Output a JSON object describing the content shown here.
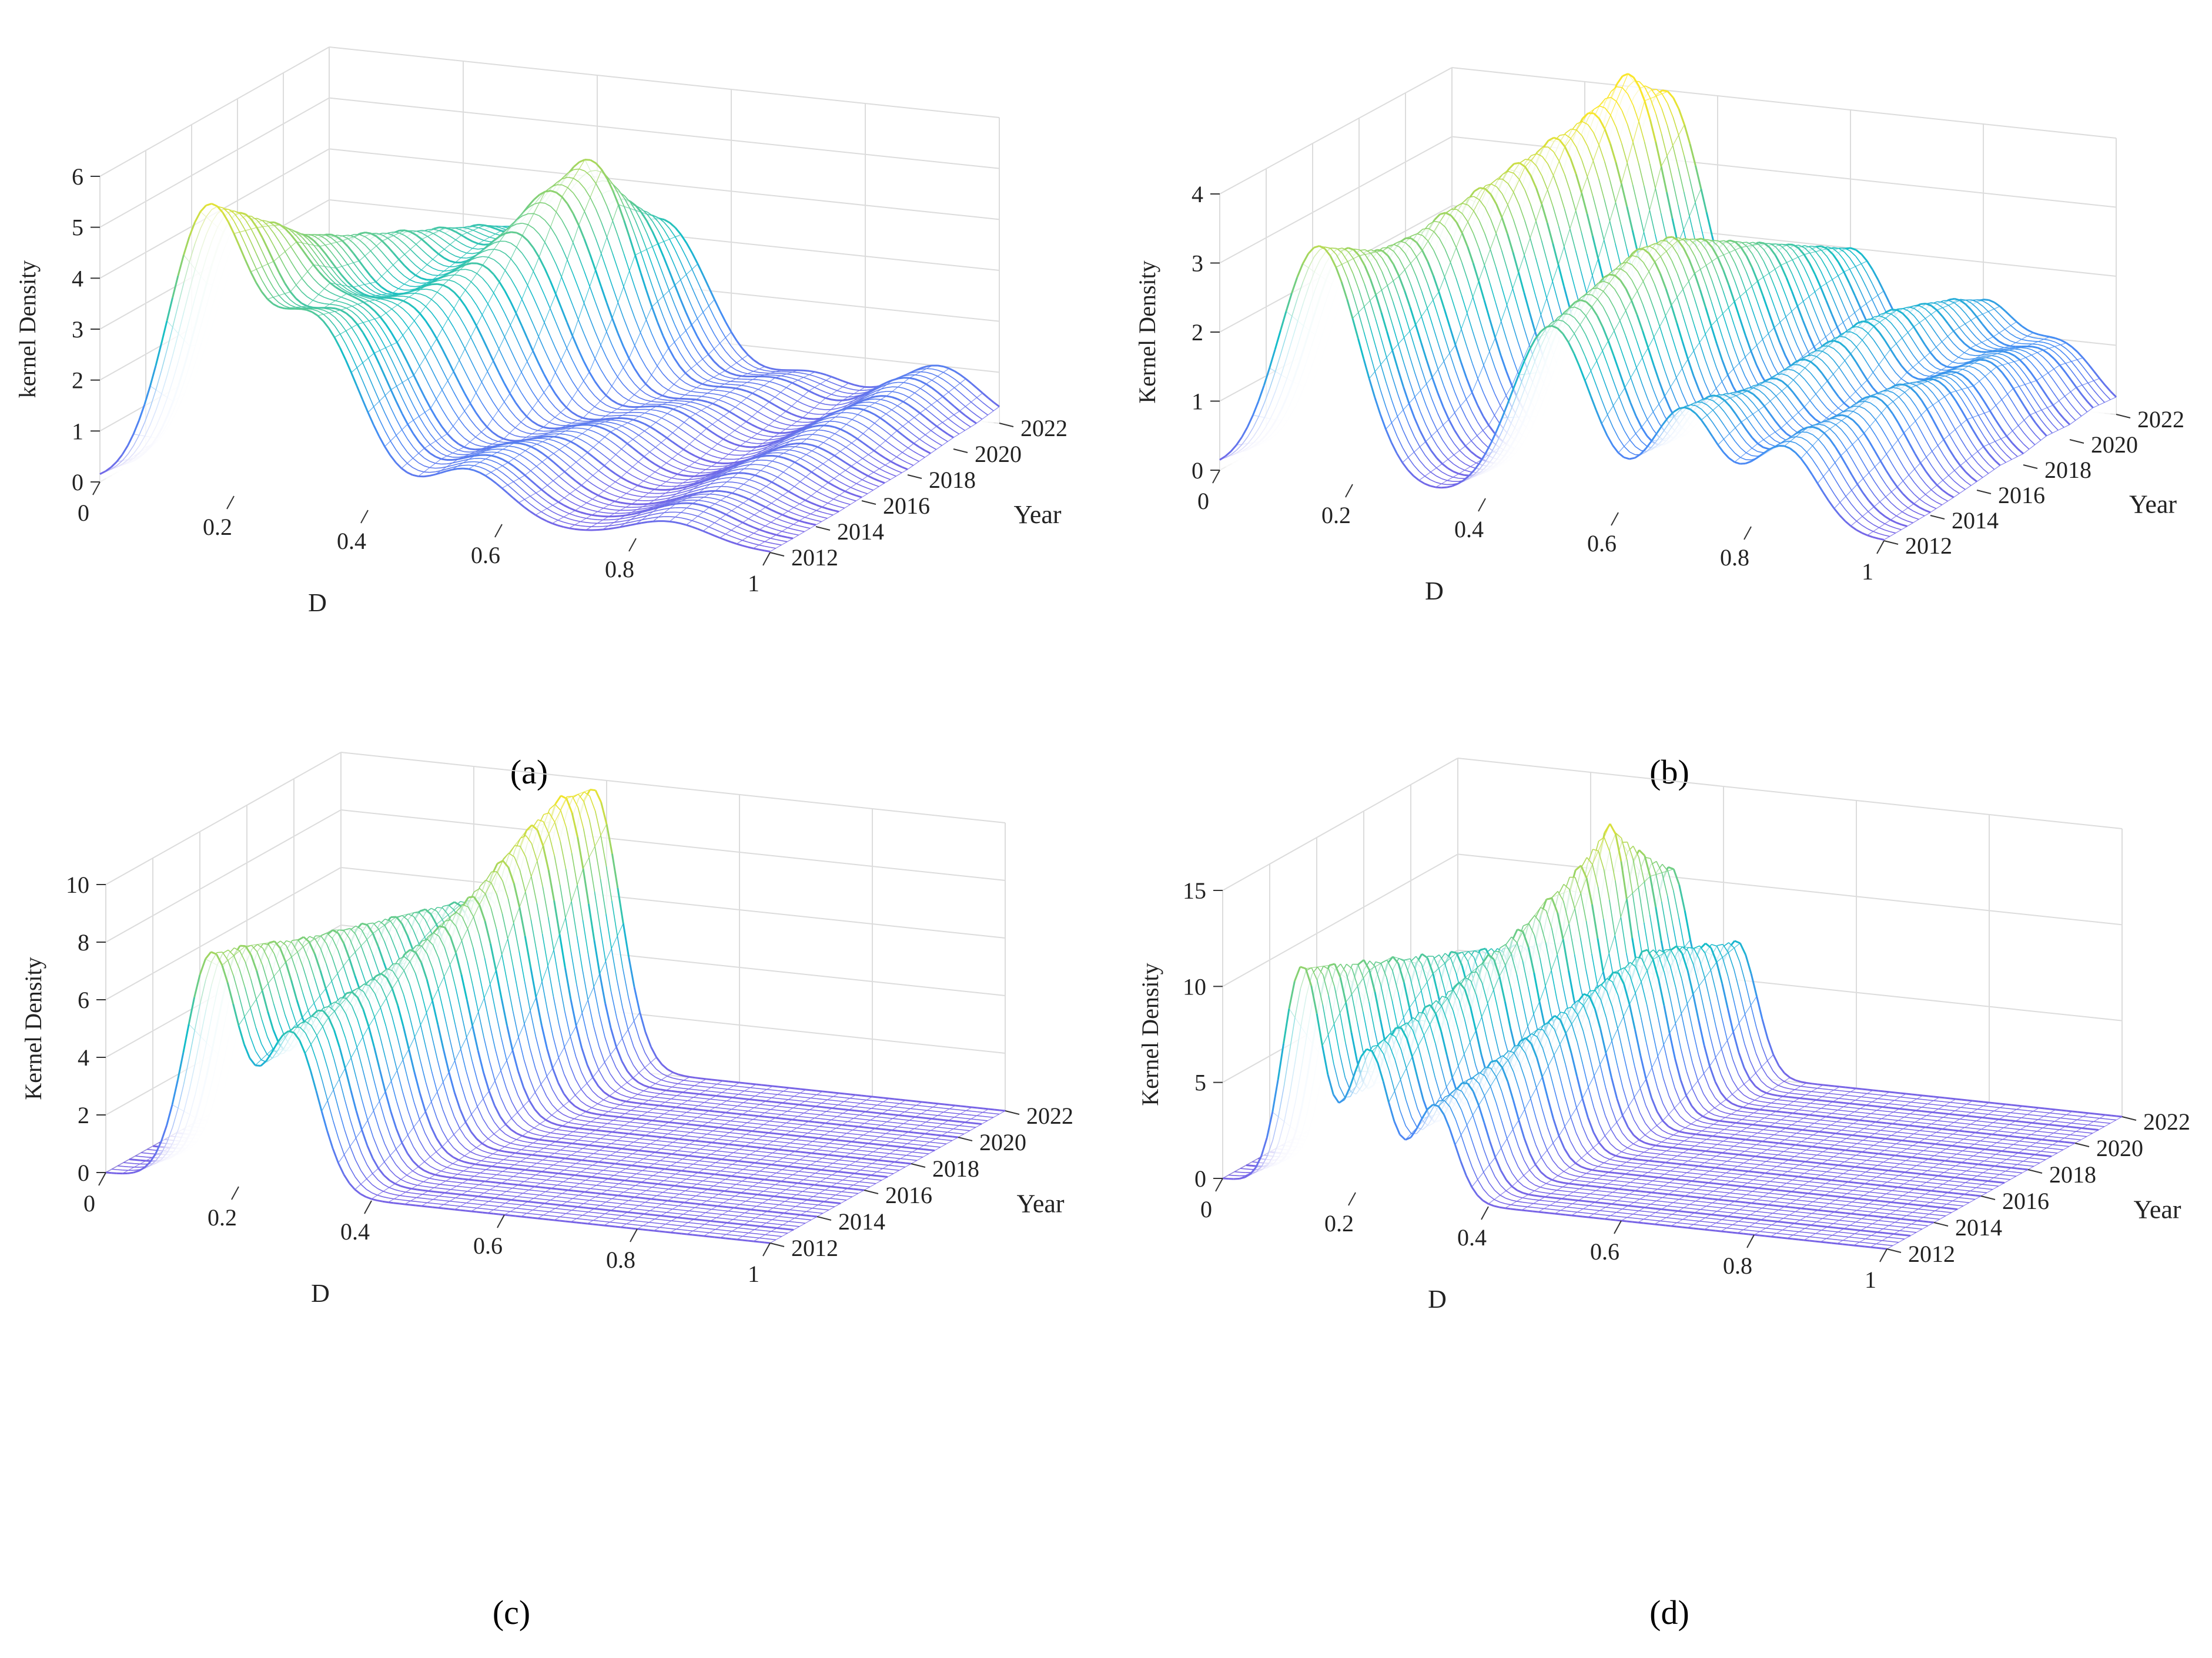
{
  "figure": {
    "captions": [
      "(a)",
      "(b)",
      "(c)",
      "(d)"
    ]
  },
  "chart_data": [
    {
      "id": "a",
      "type": "surface3d",
      "caption_letter": "a",
      "xlabel": "D",
      "ylabel": "Year",
      "zlabel": "kernel Density",
      "x_ticks": [
        "0",
        "0.2",
        "0.4",
        "0.6",
        "0.8",
        "1"
      ],
      "year_ticks": [
        "2012",
        "2014",
        "2016",
        "2018",
        "2020",
        "2022"
      ],
      "z_ticks": [
        "0",
        "1",
        "2",
        "3",
        "4",
        "5",
        "6"
      ],
      "xlim": [
        0,
        1
      ],
      "ylim": [
        2012,
        2022
      ],
      "zlim": [
        0,
        6
      ],
      "series": [
        {
          "year": 2012,
          "peaks": [
            [
              0.16,
              0.06,
              5.4
            ],
            [
              0.32,
              0.07,
              3.6
            ],
            [
              0.55,
              0.06,
              1.0
            ],
            [
              0.85,
              0.06,
              0.4
            ]
          ]
        },
        {
          "year": 2013,
          "peaks": [
            [
              0.17,
              0.06,
              5.0
            ],
            [
              0.33,
              0.07,
              3.4
            ],
            [
              0.55,
              0.06,
              1.0
            ],
            [
              0.85,
              0.06,
              0.5
            ]
          ]
        },
        {
          "year": 2014,
          "peaks": [
            [
              0.18,
              0.07,
              4.6
            ],
            [
              0.34,
              0.07,
              3.0
            ],
            [
              0.56,
              0.06,
              1.0
            ],
            [
              0.86,
              0.06,
              0.5
            ]
          ]
        },
        {
          "year": 2015,
          "peaks": [
            [
              0.19,
              0.07,
              4.2
            ],
            [
              0.36,
              0.07,
              3.0
            ],
            [
              0.58,
              0.06,
              0.9
            ],
            [
              0.86,
              0.06,
              0.6
            ]
          ]
        },
        {
          "year": 2016,
          "peaks": [
            [
              0.2,
              0.07,
              4.0
            ],
            [
              0.38,
              0.07,
              3.2
            ],
            [
              0.6,
              0.06,
              0.9
            ],
            [
              0.87,
              0.06,
              0.7
            ]
          ]
        },
        {
          "year": 2017,
          "peaks": [
            [
              0.22,
              0.07,
              3.8
            ],
            [
              0.4,
              0.07,
              3.4
            ],
            [
              0.62,
              0.06,
              0.8
            ],
            [
              0.88,
              0.06,
              0.7
            ]
          ]
        },
        {
          "year": 2018,
          "peaks": [
            [
              0.24,
              0.07,
              3.6
            ],
            [
              0.42,
              0.07,
              3.8
            ],
            [
              0.64,
              0.06,
              0.8
            ],
            [
              0.88,
              0.06,
              0.8
            ]
          ]
        },
        {
          "year": 2019,
          "peaks": [
            [
              0.26,
              0.07,
              3.4
            ],
            [
              0.44,
              0.07,
              4.4
            ],
            [
              0.66,
              0.06,
              0.7
            ],
            [
              0.89,
              0.06,
              0.9
            ]
          ]
        },
        {
          "year": 2020,
          "peaks": [
            [
              0.28,
              0.07,
              3.2
            ],
            [
              0.46,
              0.07,
              4.8
            ],
            [
              0.68,
              0.06,
              0.7
            ],
            [
              0.9,
              0.06,
              0.9
            ]
          ]
        },
        {
          "year": 2021,
          "peaks": [
            [
              0.3,
              0.07,
              3.0
            ],
            [
              0.48,
              0.07,
              3.8
            ],
            [
              0.7,
              0.06,
              0.7
            ],
            [
              0.9,
              0.06,
              1.0
            ]
          ]
        },
        {
          "year": 2022,
          "peaks": [
            [
              0.32,
              0.07,
              2.8
            ],
            [
              0.5,
              0.07,
              3.2
            ],
            [
              0.72,
              0.06,
              0.6
            ],
            [
              0.91,
              0.06,
              1.0
            ]
          ]
        }
      ]
    },
    {
      "id": "b",
      "type": "surface3d",
      "caption_letter": "b",
      "xlabel": "D",
      "ylabel": "Year",
      "zlabel": "Kernel Density",
      "x_ticks": [
        "0",
        "0.2",
        "0.4",
        "0.6",
        "0.8",
        "1"
      ],
      "year_ticks": [
        "2012",
        "2014",
        "2016",
        "2018",
        "2020",
        "2022"
      ],
      "z_ticks": [
        "0",
        "1",
        "2",
        "3",
        "4"
      ],
      "xlim": [
        0,
        1
      ],
      "ylim": [
        2012,
        2022
      ],
      "zlim": [
        0,
        4
      ],
      "series": [
        {
          "year": 2012,
          "peaks": [
            [
              0.15,
              0.06,
              3.4
            ],
            [
              0.5,
              0.06,
              2.6
            ],
            [
              0.7,
              0.05,
              1.6
            ],
            [
              0.85,
              0.05,
              1.2
            ]
          ]
        },
        {
          "year": 2013,
          "peaks": [
            [
              0.16,
              0.06,
              3.2
            ],
            [
              0.51,
              0.06,
              2.8
            ],
            [
              0.71,
              0.05,
              1.6
            ],
            [
              0.86,
              0.05,
              1.3
            ]
          ]
        },
        {
          "year": 2014,
          "peaks": [
            [
              0.17,
              0.06,
              3.0
            ],
            [
              0.52,
              0.06,
              3.0
            ],
            [
              0.72,
              0.05,
              1.5
            ],
            [
              0.87,
              0.05,
              1.3
            ]
          ]
        },
        {
          "year": 2015,
          "peaks": [
            [
              0.18,
              0.06,
              3.0
            ],
            [
              0.53,
              0.06,
              3.2
            ],
            [
              0.73,
              0.05,
              1.5
            ],
            [
              0.88,
              0.05,
              1.4
            ]
          ]
        },
        {
          "year": 2016,
          "peaks": [
            [
              0.2,
              0.06,
              3.2
            ],
            [
              0.54,
              0.06,
              3.2
            ],
            [
              0.74,
              0.05,
              1.6
            ],
            [
              0.89,
              0.05,
              1.4
            ]
          ]
        },
        {
          "year": 2017,
          "peaks": [
            [
              0.22,
              0.06,
              3.4
            ],
            [
              0.55,
              0.06,
              3.0
            ],
            [
              0.75,
              0.05,
              1.7
            ],
            [
              0.9,
              0.05,
              1.3
            ]
          ]
        },
        {
          "year": 2018,
          "peaks": [
            [
              0.24,
              0.06,
              3.6
            ],
            [
              0.56,
              0.06,
              2.8
            ],
            [
              0.76,
              0.05,
              1.8
            ],
            [
              0.9,
              0.05,
              1.2
            ]
          ]
        },
        {
          "year": 2019,
          "peaks": [
            [
              0.26,
              0.06,
              3.8
            ],
            [
              0.57,
              0.06,
              2.6
            ],
            [
              0.77,
              0.05,
              1.8
            ],
            [
              0.91,
              0.05,
              1.2
            ]
          ]
        },
        {
          "year": 2020,
          "peaks": [
            [
              0.28,
              0.06,
              4.0
            ],
            [
              0.58,
              0.06,
              2.4
            ],
            [
              0.78,
              0.05,
              1.7
            ],
            [
              0.91,
              0.05,
              1.1
            ]
          ]
        },
        {
          "year": 2021,
          "peaks": [
            [
              0.3,
              0.06,
              4.4
            ],
            [
              0.59,
              0.06,
              2.2
            ],
            [
              0.79,
              0.05,
              1.6
            ],
            [
              0.92,
              0.05,
              1.0
            ]
          ]
        },
        {
          "year": 2022,
          "peaks": [
            [
              0.32,
              0.06,
              4.0
            ],
            [
              0.6,
              0.06,
              2.0
            ],
            [
              0.8,
              0.05,
              1.4
            ],
            [
              0.92,
              0.05,
              0.9
            ]
          ]
        }
      ]
    },
    {
      "id": "c",
      "type": "surface3d",
      "caption_letter": "c",
      "xlabel": "D",
      "ylabel": "Year",
      "zlabel": "Kernel Density",
      "x_ticks": [
        "0",
        "0.2",
        "0.4",
        "0.6",
        "0.8",
        "1"
      ],
      "year_ticks": [
        "2012",
        "2014",
        "2016",
        "2018",
        "2020",
        "2022"
      ],
      "z_ticks": [
        "0",
        "2",
        "4",
        "6",
        "8",
        "10"
      ],
      "xlim": [
        0,
        1
      ],
      "ylim": [
        2012,
        2022
      ],
      "zlim": [
        0,
        10
      ],
      "series": [
        {
          "year": 2012,
          "peaks": [
            [
              0.16,
              0.04,
              8.0
            ],
            [
              0.28,
              0.04,
              5.5
            ]
          ]
        },
        {
          "year": 2013,
          "peaks": [
            [
              0.17,
              0.04,
              7.8
            ],
            [
              0.29,
              0.04,
              5.8
            ]
          ]
        },
        {
          "year": 2014,
          "peaks": [
            [
              0.18,
              0.04,
              7.5
            ],
            [
              0.3,
              0.04,
              6.0
            ]
          ]
        },
        {
          "year": 2015,
          "peaks": [
            [
              0.19,
              0.04,
              7.2
            ],
            [
              0.31,
              0.04,
              6.2
            ]
          ]
        },
        {
          "year": 2016,
          "peaks": [
            [
              0.2,
              0.04,
              7.0
            ],
            [
              0.32,
              0.04,
              6.6
            ]
          ]
        },
        {
          "year": 2017,
          "peaks": [
            [
              0.21,
              0.04,
              6.8
            ],
            [
              0.33,
              0.04,
              7.0
            ]
          ]
        },
        {
          "year": 2018,
          "peaks": [
            [
              0.22,
              0.04,
              6.6
            ],
            [
              0.34,
              0.04,
              7.6
            ]
          ]
        },
        {
          "year": 2019,
          "peaks": [
            [
              0.23,
              0.04,
              6.4
            ],
            [
              0.35,
              0.04,
              8.4
            ]
          ]
        },
        {
          "year": 2020,
          "peaks": [
            [
              0.24,
              0.04,
              6.2
            ],
            [
              0.36,
              0.04,
              9.2
            ]
          ]
        },
        {
          "year": 2021,
          "peaks": [
            [
              0.25,
              0.04,
              6.0
            ],
            [
              0.37,
              0.04,
              9.8
            ]
          ]
        },
        {
          "year": 2022,
          "peaks": [
            [
              0.26,
              0.04,
              6.0
            ],
            [
              0.38,
              0.04,
              9.6
            ]
          ]
        }
      ]
    },
    {
      "id": "d",
      "type": "surface3d",
      "caption_letter": "d",
      "xlabel": "D",
      "ylabel": "Year",
      "zlabel": "Kernel Density",
      "x_ticks": [
        "0",
        "0.2",
        "0.4",
        "0.6",
        "0.8",
        "1"
      ],
      "year_ticks": [
        "2012",
        "2014",
        "2016",
        "2018",
        "2020",
        "2022"
      ],
      "z_ticks": [
        "0",
        "5",
        "10",
        "15"
      ],
      "xlim": [
        0,
        1
      ],
      "ylim": [
        2012,
        2022
      ],
      "zlim": [
        0,
        15
      ],
      "series": [
        {
          "year": 2012,
          "peaks": [
            [
              0.12,
              0.03,
              11.5
            ],
            [
              0.22,
              0.03,
              7.5
            ],
            [
              0.32,
              0.03,
              5.0
            ]
          ]
        },
        {
          "year": 2013,
          "peaks": [
            [
              0.13,
              0.03,
              11.0
            ],
            [
              0.23,
              0.03,
              8.0
            ],
            [
              0.33,
              0.03,
              5.5
            ]
          ]
        },
        {
          "year": 2014,
          "peaks": [
            [
              0.14,
              0.03,
              10.5
            ],
            [
              0.24,
              0.03,
              8.5
            ],
            [
              0.34,
              0.03,
              6.0
            ]
          ]
        },
        {
          "year": 2015,
          "peaks": [
            [
              0.15,
              0.03,
              10.0
            ],
            [
              0.25,
              0.03,
              9.0
            ],
            [
              0.35,
              0.03,
              6.5
            ]
          ]
        },
        {
          "year": 2016,
          "peaks": [
            [
              0.16,
              0.03,
              9.5
            ],
            [
              0.26,
              0.03,
              9.8
            ],
            [
              0.36,
              0.03,
              7.0
            ]
          ]
        },
        {
          "year": 2017,
          "peaks": [
            [
              0.17,
              0.03,
              9.0
            ],
            [
              0.27,
              0.03,
              10.5
            ],
            [
              0.37,
              0.03,
              7.5
            ]
          ]
        },
        {
          "year": 2018,
          "peaks": [
            [
              0.18,
              0.03,
              8.5
            ],
            [
              0.28,
              0.03,
              11.5
            ],
            [
              0.38,
              0.03,
              8.0
            ]
          ]
        },
        {
          "year": 2019,
          "peaks": [
            [
              0.19,
              0.03,
              8.0
            ],
            [
              0.29,
              0.03,
              12.5
            ],
            [
              0.39,
              0.03,
              8.5
            ]
          ]
        },
        {
          "year": 2020,
          "peaks": [
            [
              0.2,
              0.03,
              7.5
            ],
            [
              0.3,
              0.03,
              14.0
            ],
            [
              0.4,
              0.03,
              8.0
            ]
          ]
        },
        {
          "year": 2021,
          "peaks": [
            [
              0.21,
              0.03,
              7.0
            ],
            [
              0.31,
              0.03,
              12.0
            ],
            [
              0.41,
              0.03,
              7.5
            ]
          ]
        },
        {
          "year": 2022,
          "peaks": [
            [
              0.22,
              0.03,
              6.5
            ],
            [
              0.32,
              0.03,
              10.5
            ],
            [
              0.42,
              0.03,
              7.0
            ]
          ]
        }
      ]
    }
  ]
}
